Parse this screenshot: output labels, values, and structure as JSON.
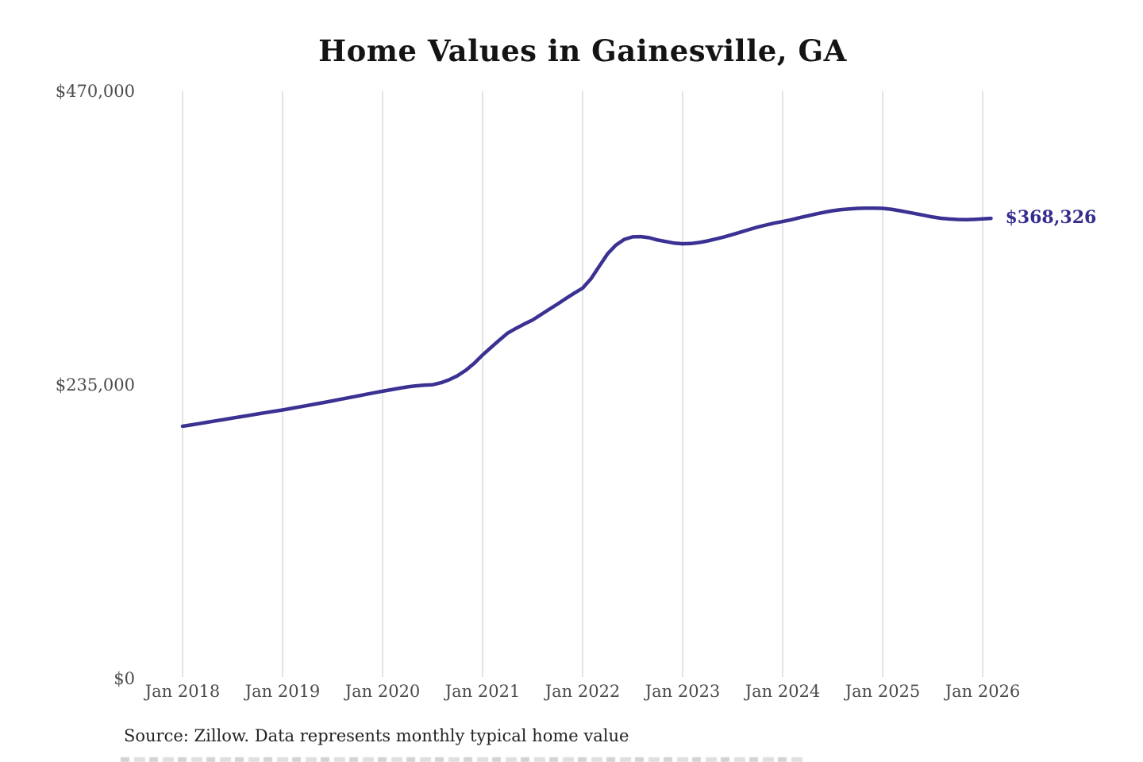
{
  "chart": {
    "title": "Home Values in Gainesville, GA",
    "end_label": "$368,326",
    "source_note": "Source: Zillow. Data represents monthly typical home value"
  },
  "colors": {
    "line": "#3a3193",
    "end_label": "#352e8e",
    "gridline": "#c9c9c9",
    "axis_label": "#4c4c4c",
    "title": "#141414",
    "source": "#232323"
  },
  "chart_data": {
    "type": "line",
    "title": "Home Values in Gainesville, GA",
    "xlabel": "",
    "ylabel": "",
    "x_tick_labels": [
      "Jan 2018",
      "Jan 2019",
      "Jan 2020",
      "Jan 2021",
      "Jan 2022",
      "Jan 2023",
      "Jan 2024",
      "Jan 2025",
      "Jan 2026"
    ],
    "y_ticks": [
      470000,
      235000,
      0
    ],
    "y_tick_labels": [
      "$470,000",
      "$235,000",
      "$0"
    ],
    "ylim": [
      0,
      470000
    ],
    "grid": "vertical-only",
    "legend": "none",
    "annotation": {
      "text": "$368,326",
      "value": 368326,
      "position": "line-end"
    },
    "source": "Source: Zillow. Data represents monthly typical home value",
    "series": [
      {
        "name": "Monthly typical home value",
        "color": "#3a3193",
        "start": "Jan 2018",
        "end": "Feb 2026",
        "frequency": "monthly",
        "values": [
          202000,
          203000,
          204100,
          205200,
          206300,
          207400,
          208500,
          209600,
          210700,
          211800,
          212900,
          214000,
          215000,
          216200,
          217400,
          218600,
          219800,
          221000,
          222300,
          223600,
          224900,
          226200,
          227500,
          228800,
          230000,
          231200,
          232400,
          233500,
          234300,
          234900,
          235200,
          236800,
          239200,
          242400,
          246800,
          252400,
          259000,
          265000,
          270800,
          276500,
          280300,
          283800,
          287000,
          291300,
          295600,
          299800,
          304200,
          308500,
          312500,
          320000,
          330000,
          340000,
          347000,
          351500,
          353500,
          353700,
          352800,
          351000,
          349800,
          348500,
          348000,
          348200,
          349000,
          350300,
          351800,
          353500,
          355400,
          357400,
          359400,
          361300,
          363000,
          364500,
          365800,
          367200,
          368800,
          370300,
          371800,
          373200,
          374400,
          375300,
          375900,
          376300,
          376500,
          376500,
          376300,
          375600,
          374500,
          373300,
          372000,
          370700,
          369400,
          368400,
          367800,
          367400,
          367300,
          367500,
          367900,
          368326
        ]
      }
    ]
  }
}
